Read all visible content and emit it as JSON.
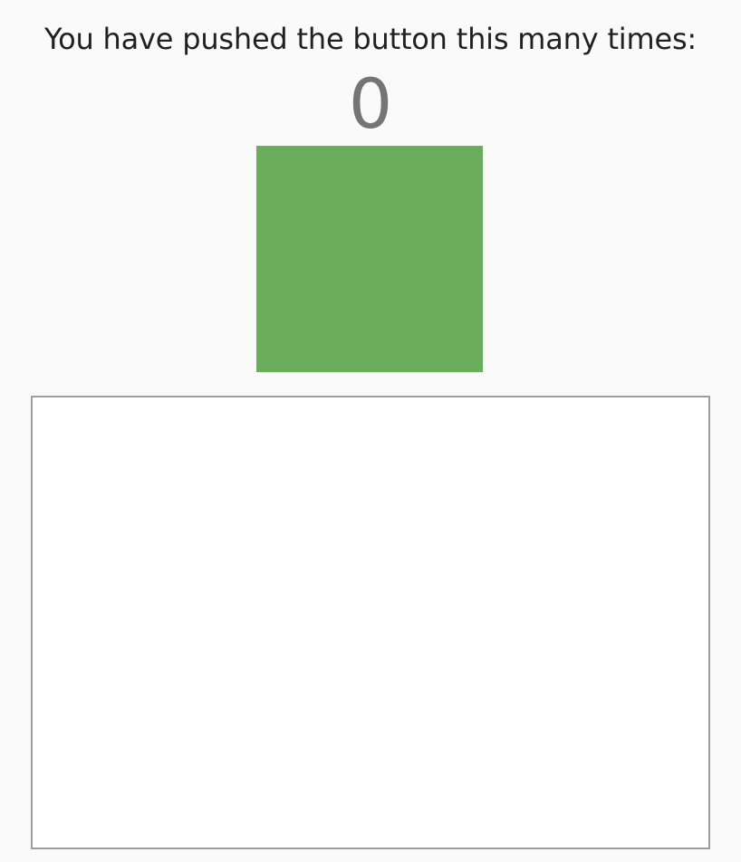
{
  "prompt": {
    "text": "You have pushed the button this many times:"
  },
  "counter": {
    "value": "0"
  },
  "colors": {
    "background": "#fafafa",
    "box": "#6aad5d",
    "panel_border": "#9e9e9e",
    "counter_text": "#757575"
  }
}
